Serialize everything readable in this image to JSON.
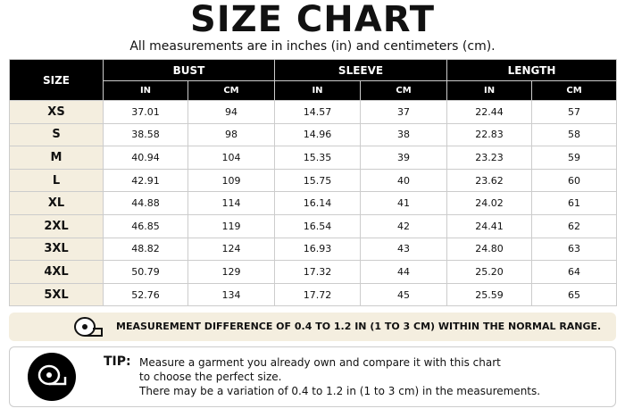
{
  "header": {
    "title": "SIZE CHART",
    "subtitle": "All measurements are in inches (in) and centimeters (cm)."
  },
  "table": {
    "size_header": "SIZE",
    "groups": [
      "BUST",
      "SLEEVE",
      "LENGTH"
    ],
    "units": [
      "IN",
      "CM",
      "IN",
      "CM",
      "IN",
      "CM"
    ],
    "rows": [
      [
        "XS",
        "37.01",
        "94",
        "14.57",
        "37",
        "22.44",
        "57"
      ],
      [
        "S",
        "38.58",
        "98",
        "14.96",
        "38",
        "22.83",
        "58"
      ],
      [
        "M",
        "40.94",
        "104",
        "15.35",
        "39",
        "23.23",
        "59"
      ],
      [
        "L",
        "42.91",
        "109",
        "15.75",
        "40",
        "23.62",
        "60"
      ],
      [
        "XL",
        "44.88",
        "114",
        "16.14",
        "41",
        "24.02",
        "61"
      ],
      [
        "2XL",
        "46.85",
        "119",
        "16.54",
        "42",
        "24.41",
        "62"
      ],
      [
        "3XL",
        "48.82",
        "124",
        "16.93",
        "43",
        "24.80",
        "63"
      ],
      [
        "4XL",
        "50.79",
        "129",
        "17.32",
        "44",
        "25.20",
        "64"
      ],
      [
        "5XL",
        "52.76",
        "134",
        "17.72",
        "45",
        "25.59",
        "65"
      ]
    ]
  },
  "note": "MEASUREMENT DIFFERENCE OF 0.4 TO 1.2 IN (1 TO 3 CM) WITHIN THE NORMAL RANGE.",
  "tip": {
    "label": "TIP:",
    "lines": [
      "Measure a garment you already own and compare it with this chart",
      "to choose the perfect size.",
      "There may be a variation of 0.4 to 1.2 in (1 to 3 cm) in the measurements."
    ]
  }
}
